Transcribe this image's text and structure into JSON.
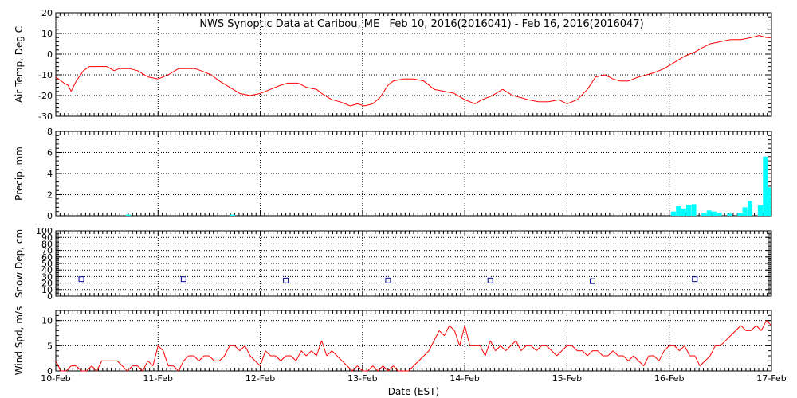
{
  "title": "NWS Synoptic Data at Caribou, ME   Feb 10, 2016(2016041) - Feb 16, 2016(2016047)",
  "xlabel": "Date (EST)",
  "date_ticks": [
    "10-Feb",
    "11-Feb",
    "12-Feb",
    "13-Feb",
    "14-Feb",
    "15-Feb",
    "16-Feb",
    "17-Feb"
  ],
  "colors": {
    "temp": "#ff0000",
    "precip": "#00ffff",
    "snow": "#000099",
    "wind": "#ff0000"
  },
  "chart_data": [
    {
      "type": "line",
      "ylabel": "Air Temp, Deg C",
      "ylim": [
        -30,
        20
      ],
      "yticks": [
        -30,
        -20,
        -10,
        0,
        10,
        20
      ],
      "xunit": "days since 10-Feb",
      "x": [
        0,
        0.08,
        0.12,
        0.15,
        0.2,
        0.27,
        0.33,
        0.4,
        0.5,
        0.57,
        0.62,
        0.72,
        0.8,
        0.9,
        1.0,
        1.1,
        1.2,
        1.3,
        1.36,
        1.42,
        1.52,
        1.6,
        1.7,
        1.8,
        1.9,
        2.0,
        2.1,
        2.2,
        2.27,
        2.37,
        2.45,
        2.55,
        2.6,
        2.7,
        2.78,
        2.88,
        2.95,
        3.02,
        3.1,
        3.17,
        3.25,
        3.3,
        3.4,
        3.5,
        3.6,
        3.7,
        3.8,
        3.9,
        4.0,
        4.1,
        4.17,
        4.27,
        4.37,
        4.47,
        4.55,
        4.62,
        4.72,
        4.82,
        4.92,
        5.0,
        5.1,
        5.2,
        5.28,
        5.37,
        5.45,
        5.52,
        5.6,
        5.7,
        5.78,
        5.85,
        5.95,
        6.05,
        6.15,
        6.25,
        6.32,
        6.4,
        6.5,
        6.6,
        6.7,
        6.8,
        6.88,
        6.95,
        7.0
      ],
      "series": [
        {
          "values": [
            -11,
            -14,
            -15,
            -18,
            -13,
            -8,
            -6,
            -6,
            -6,
            -8,
            -7,
            -7,
            -8,
            -11,
            -12,
            -10,
            -7,
            -7,
            -7,
            -8,
            -10,
            -13,
            -16,
            -19,
            -20,
            -19,
            -17,
            -15,
            -14,
            -14,
            -16,
            -17,
            -19,
            -22,
            -23,
            -25,
            -24,
            -25,
            -24,
            -21,
            -15,
            -13,
            -12,
            -12,
            -13,
            -17,
            -18,
            -19,
            -22,
            -24,
            -22,
            -20,
            -17,
            -20,
            -21,
            -22,
            -23,
            -23,
            -22,
            -24,
            -22,
            -17,
            -11,
            -10,
            -12,
            -13,
            -13,
            -11,
            -10,
            -9,
            -7,
            -4,
            -1,
            1,
            3,
            5,
            6,
            7,
            7,
            8,
            9,
            8,
            8
          ]
        }
      ]
    },
    {
      "type": "bar",
      "ylabel": "Precip, mm",
      "ylim": [
        0,
        8
      ],
      "yticks": [
        0,
        2,
        4,
        6,
        8
      ],
      "xunit": "days since 10-Feb",
      "x": [
        0.71,
        1.73,
        6.04,
        6.09,
        6.14,
        6.19,
        6.24,
        6.34,
        6.39,
        6.44,
        6.49,
        6.59,
        6.69,
        6.74,
        6.79,
        6.89,
        6.94,
        6.97
      ],
      "values": [
        0.1,
        0.1,
        0.4,
        0.9,
        0.7,
        1.0,
        1.1,
        0.3,
        0.5,
        0.4,
        0.3,
        0.2,
        0.3,
        0.8,
        1.4,
        1.0,
        5.6,
        2.7
      ]
    },
    {
      "type": "scatter",
      "ylabel": "Snow Dep, cm",
      "ylim": [
        0,
        100
      ],
      "yticks": [
        0,
        10,
        20,
        30,
        40,
        50,
        60,
        70,
        80,
        90,
        100
      ],
      "xunit": "days since 10-Feb",
      "x": [
        0.25,
        1.25,
        2.25,
        3.25,
        4.25,
        5.25,
        6.25
      ],
      "values": [
        26,
        26,
        24,
        24,
        24,
        23,
        26
      ]
    },
    {
      "type": "line",
      "ylabel": "Wind Spd, m/s",
      "ylim": [
        0,
        12
      ],
      "yticks": [
        0,
        5,
        10
      ],
      "xunit": "days since 10-Feb",
      "x": [
        0,
        0.05,
        0.1,
        0.15,
        0.2,
        0.25,
        0.3,
        0.35,
        0.4,
        0.45,
        0.5,
        0.55,
        0.6,
        0.65,
        0.7,
        0.75,
        0.8,
        0.85,
        0.9,
        0.95,
        1.0,
        1.05,
        1.1,
        1.15,
        1.2,
        1.25,
        1.3,
        1.35,
        1.4,
        1.45,
        1.5,
        1.55,
        1.6,
        1.65,
        1.7,
        1.75,
        1.8,
        1.85,
        1.9,
        1.95,
        2.0,
        2.05,
        2.1,
        2.15,
        2.2,
        2.25,
        2.3,
        2.35,
        2.4,
        2.45,
        2.5,
        2.55,
        2.6,
        2.65,
        2.7,
        2.75,
        2.8,
        2.85,
        2.9,
        2.95,
        3.0,
        3.05,
        3.1,
        3.15,
        3.2,
        3.25,
        3.3,
        3.35,
        3.4,
        3.45,
        3.5,
        3.55,
        3.6,
        3.65,
        3.7,
        3.75,
        3.8,
        3.85,
        3.9,
        3.95,
        4.0,
        4.05,
        4.1,
        4.15,
        4.2,
        4.25,
        4.3,
        4.35,
        4.4,
        4.45,
        4.5,
        4.55,
        4.6,
        4.65,
        4.7,
        4.75,
        4.8,
        4.85,
        4.9,
        4.95,
        5.0,
        5.05,
        5.1,
        5.15,
        5.2,
        5.25,
        5.3,
        5.35,
        5.4,
        5.45,
        5.5,
        5.55,
        5.6,
        5.65,
        5.7,
        5.75,
        5.8,
        5.85,
        5.9,
        5.95,
        6.0,
        6.05,
        6.1,
        6.15,
        6.2,
        6.25,
        6.3,
        6.35,
        6.4,
        6.45,
        6.5,
        6.55,
        6.6,
        6.65,
        6.7,
        6.75,
        6.8,
        6.85,
        6.9,
        6.95,
        7.0
      ],
      "series": [
        {
          "values": [
            2,
            0,
            0,
            1,
            1,
            0,
            0,
            1,
            0,
            2,
            2,
            2,
            2,
            1,
            0,
            1,
            1,
            0,
            2,
            1,
            5,
            4,
            1,
            1,
            0,
            2,
            3,
            3,
            2,
            3,
            3,
            2,
            2,
            3,
            5,
            5,
            4,
            5,
            3,
            2,
            1,
            4,
            3,
            3,
            2,
            3,
            3,
            2,
            4,
            3,
            4,
            3,
            6,
            3,
            4,
            3,
            2,
            1,
            0,
            1,
            0,
            0,
            1,
            0,
            1,
            0,
            1,
            0,
            0,
            0,
            1,
            2,
            3,
            4,
            6,
            8,
            7,
            9,
            8,
            5,
            9,
            5,
            5,
            5,
            3,
            6,
            4,
            5,
            4,
            5,
            6,
            4,
            5,
            5,
            4,
            5,
            5,
            4,
            3,
            4,
            5,
            5,
            4,
            4,
            3,
            4,
            4,
            3,
            3,
            4,
            3,
            3,
            2,
            3,
            2,
            1,
            3,
            3,
            2,
            4,
            5,
            5,
            4,
            5,
            3,
            3,
            1,
            2,
            3,
            5,
            5,
            6,
            7,
            8,
            9,
            8,
            8,
            9,
            8,
            10,
            9
          ]
        }
      ]
    }
  ]
}
